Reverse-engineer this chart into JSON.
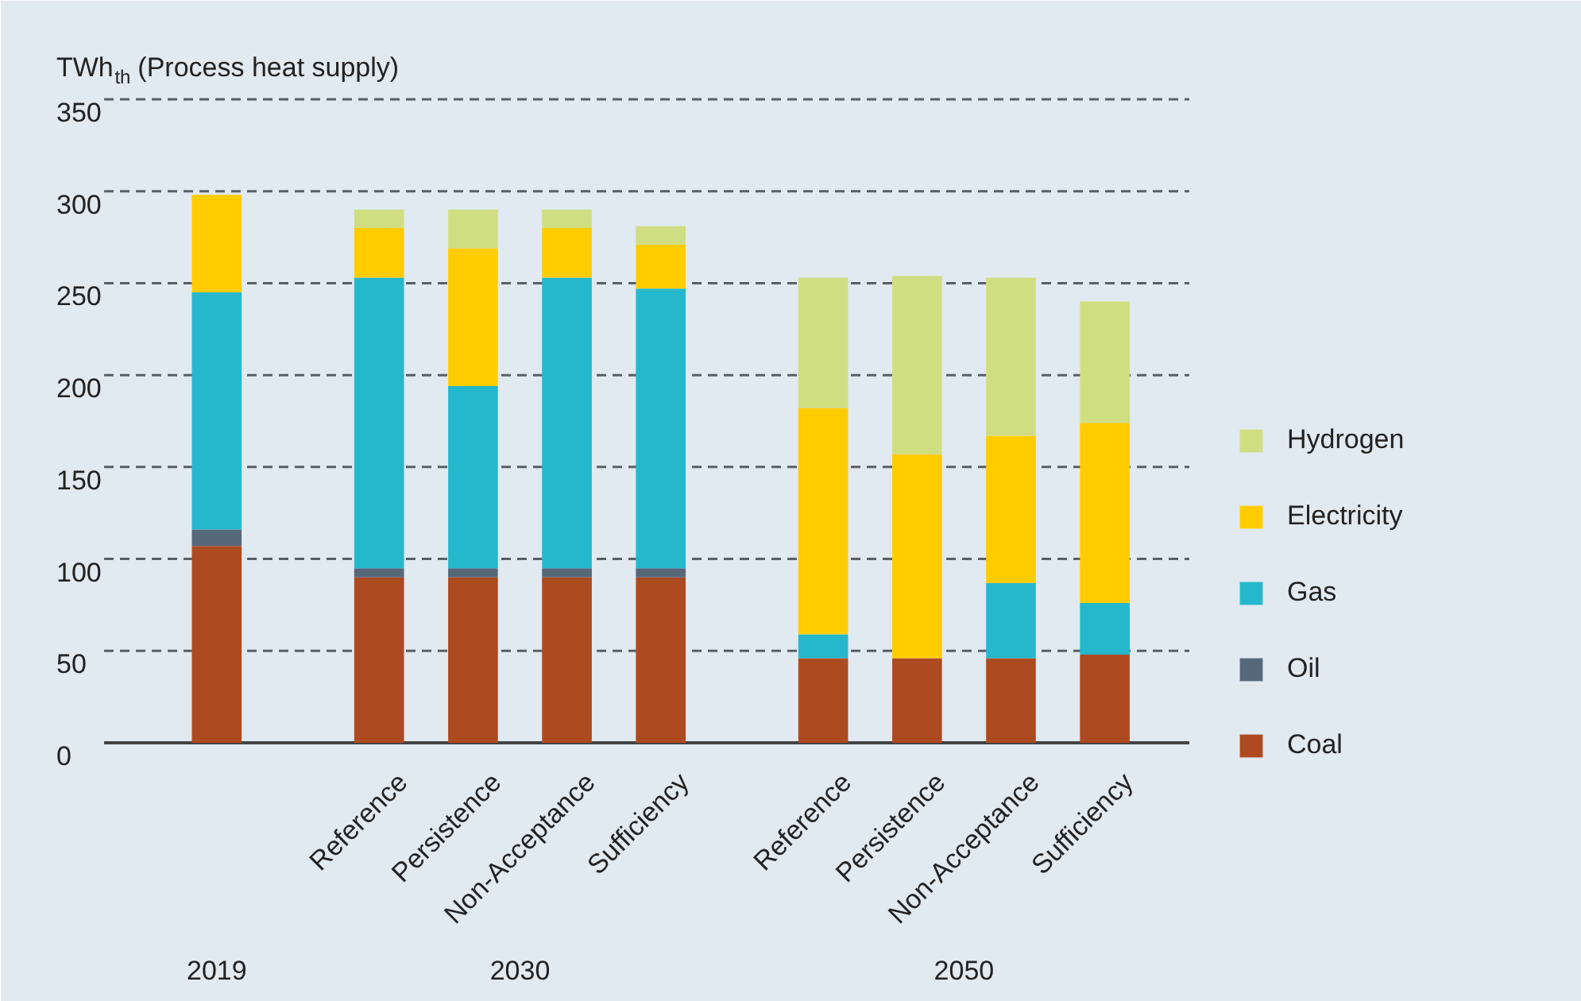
{
  "chart_data": {
    "type": "bar",
    "stacked": true,
    "ylabel": "TWh$_{th}$ (Process heat supply)",
    "categories": [
      null,
      "Reference",
      "Persistence",
      "Non-Acceptance",
      "Sufficiency",
      "Reference",
      "Persistence",
      "Non-Acceptance",
      "Sufficiency"
    ],
    "series": [
      {
        "name": "Coal",
        "color": "#ae4a20",
        "values": [
          107,
          90,
          90,
          90,
          90,
          46,
          46,
          46,
          48
        ]
      },
      {
        "name": "Oil",
        "color": "#56687a",
        "values": [
          9,
          5,
          5,
          5,
          5,
          0,
          0,
          0,
          0
        ]
      },
      {
        "name": "Gas",
        "color": "#25b8cc",
        "values": [
          129,
          158,
          99,
          158,
          152,
          13,
          0,
          41,
          28
        ]
      },
      {
        "name": "Electricity",
        "color": "#ffcc00",
        "values": [
          53,
          27,
          75,
          27,
          24,
          123,
          111,
          80,
          98
        ]
      },
      {
        "name": "Hydrogen",
        "color": "#d0de82",
        "values": [
          0,
          10,
          21,
          10,
          10,
          71,
          97,
          86,
          66
        ]
      }
    ],
    "ylim": [
      0,
      350
    ],
    "yticks": [
      0,
      50,
      100,
      150,
      200,
      250,
      300,
      350
    ],
    "grid": "y",
    "legend": "right",
    "annotations": [
      "2019",
      "2030",
      "2050"
    ]
  }
}
